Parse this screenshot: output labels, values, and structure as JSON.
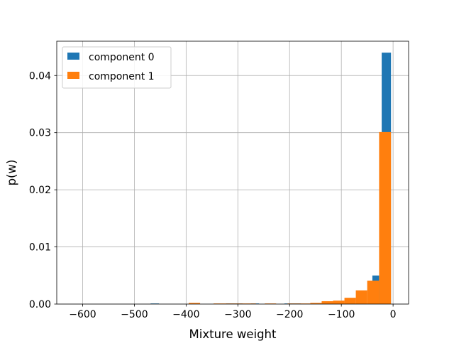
{
  "chart_data": {
    "type": "bar",
    "subtype": "overlaid-histogram",
    "title": "",
    "xlabel": "Mixture weight",
    "ylabel": "p(w)",
    "xlim": [
      -650,
      30
    ],
    "ylim": [
      0,
      0.046
    ],
    "xticks": [
      -600,
      -500,
      -400,
      -300,
      -200,
      -100,
      0
    ],
    "xtick_labels": [
      "−600",
      "−500",
      "−400",
      "−300",
      "−200",
      "−100",
      "0"
    ],
    "yticks": [
      0.0,
      0.01,
      0.02,
      0.03,
      0.04
    ],
    "ytick_labels": [
      "0.00",
      "0.01",
      "0.02",
      "0.03",
      "0.04"
    ],
    "grid": true,
    "legend_position": "upper-left",
    "series": [
      {
        "name": "component 0",
        "color": "#1f77b4",
        "bins": [
          {
            "x0": -468.6,
            "x1": -452.4,
            "y": 0.0001
          },
          {
            "x0": -323.0,
            "x1": -307.0,
            "y": 0.0001
          },
          {
            "x0": -307.0,
            "x1": -291.0,
            "y": 0.0001
          },
          {
            "x0": -275.0,
            "x1": -259.0,
            "y": 0.0001
          },
          {
            "x0": -210.0,
            "x1": -194.0,
            "y": 0.0001
          },
          {
            "x0": -194.0,
            "x1": -178.0,
            "y": 0.0001
          },
          {
            "x0": -40.0,
            "x1": -27.0,
            "y": 0.005
          },
          {
            "x0": -22.0,
            "x1": -4.0,
            "y": 0.044
          }
        ]
      },
      {
        "name": "component 1",
        "color": "#ff7f0e",
        "bins": [
          {
            "x0": -395.0,
            "x1": -373.0,
            "y": 0.0002
          },
          {
            "x0": -347.0,
            "x1": -325.0,
            "y": 0.0001
          },
          {
            "x0": -325.0,
            "x1": -305.0,
            "y": 0.0001
          },
          {
            "x0": -305.0,
            "x1": -285.0,
            "y": 0.0001
          },
          {
            "x0": -285.0,
            "x1": -265.0,
            "y": 0.0001
          },
          {
            "x0": -248.0,
            "x1": -226.0,
            "y": 0.0001
          },
          {
            "x0": -204.0,
            "x1": -182.0,
            "y": 0.0001
          },
          {
            "x0": -182.0,
            "x1": -160.0,
            "y": 0.0001
          },
          {
            "x0": -160.0,
            "x1": -138.0,
            "y": 0.0002
          },
          {
            "x0": -138.0,
            "x1": -116.0,
            "y": 0.0005
          },
          {
            "x0": -116.0,
            "x1": -94.0,
            "y": 0.0006
          },
          {
            "x0": -94.0,
            "x1": -72.0,
            "y": 0.0011
          },
          {
            "x0": -72.0,
            "x1": -50.0,
            "y": 0.0024
          },
          {
            "x0": -50.0,
            "x1": -27.0,
            "y": 0.0041
          },
          {
            "x0": -27.0,
            "x1": -4.0,
            "y": 0.0301
          }
        ]
      }
    ]
  }
}
